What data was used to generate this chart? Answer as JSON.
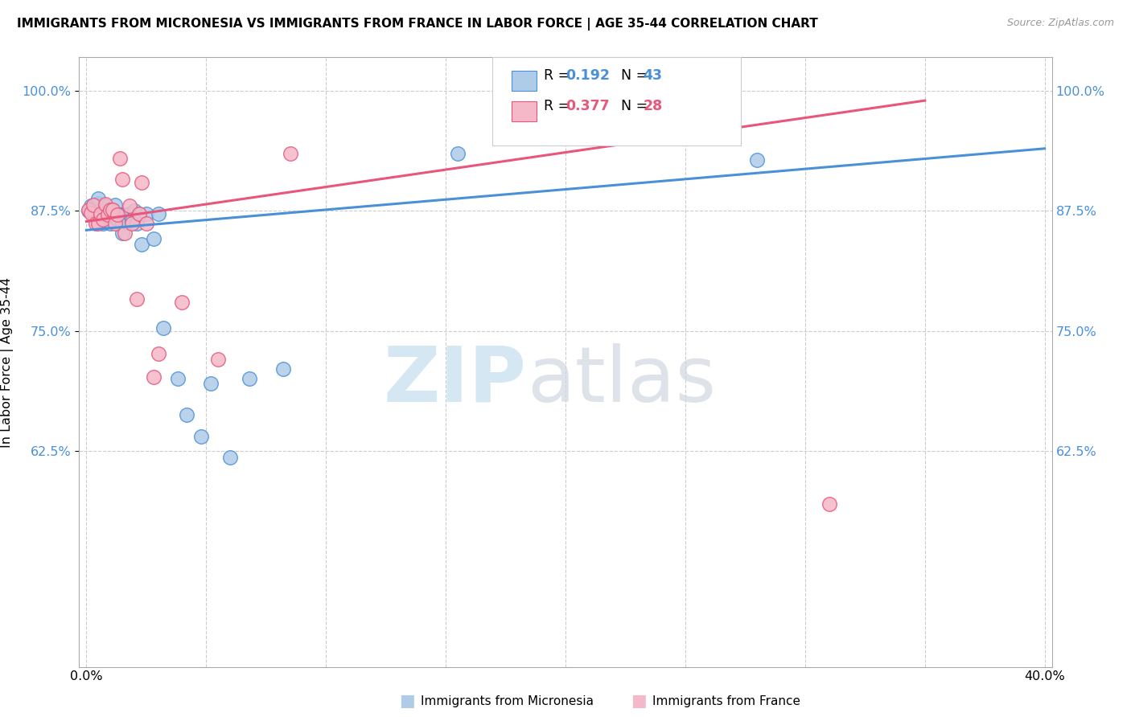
{
  "title": "IMMIGRANTS FROM MICRONESIA VS IMMIGRANTS FROM FRANCE IN LABOR FORCE | AGE 35-44 CORRELATION CHART",
  "source": "Source: ZipAtlas.com",
  "ylabel": "In Labor Force | Age 35-44",
  "xlim": [
    -0.003,
    0.403
  ],
  "ylim": [
    0.4,
    1.035
  ],
  "yticks": [
    1.0,
    0.875,
    0.75,
    0.625
  ],
  "ytick_labels": [
    "100.0%",
    "87.5%",
    "75.0%",
    "62.5%"
  ],
  "xticks": [
    0.0,
    0.05,
    0.1,
    0.15,
    0.2,
    0.25,
    0.3,
    0.35,
    0.4
  ],
  "xtick_labels": [
    "0.0%",
    "",
    "",
    "",
    "",
    "",
    "",
    "",
    "40.0%"
  ],
  "micronesia_R": "0.192",
  "micronesia_N": "43",
  "france_R": "0.377",
  "france_N": "28",
  "micronesia_color": "#aecce8",
  "france_color": "#f5b8c8",
  "micronesia_line_color": "#4a90d9",
  "france_line_color": "#e8567a",
  "micronesia_x": [
    0.001,
    0.002,
    0.003,
    0.004,
    0.005,
    0.005,
    0.006,
    0.007,
    0.007,
    0.008,
    0.009,
    0.01,
    0.01,
    0.011,
    0.011,
    0.012,
    0.012,
    0.013,
    0.013,
    0.014,
    0.015,
    0.015,
    0.016,
    0.017,
    0.018,
    0.019,
    0.02,
    0.021,
    0.022,
    0.023,
    0.025,
    0.028,
    0.03,
    0.032,
    0.038,
    0.042,
    0.048,
    0.052,
    0.06,
    0.068,
    0.082,
    0.155,
    0.28
  ],
  "micronesia_y": [
    0.875,
    0.88,
    0.876,
    0.882,
    0.883,
    0.888,
    0.872,
    0.877,
    0.862,
    0.88,
    0.866,
    0.876,
    0.862,
    0.872,
    0.876,
    0.881,
    0.871,
    0.866,
    0.871,
    0.871,
    0.863,
    0.852,
    0.871,
    0.863,
    0.872,
    0.865,
    0.875,
    0.862,
    0.872,
    0.84,
    0.872,
    0.846,
    0.872,
    0.753,
    0.7,
    0.663,
    0.64,
    0.695,
    0.618,
    0.7,
    0.71,
    0.935,
    0.928
  ],
  "france_x": [
    0.001,
    0.002,
    0.003,
    0.004,
    0.005,
    0.006,
    0.007,
    0.008,
    0.009,
    0.01,
    0.011,
    0.012,
    0.013,
    0.014,
    0.015,
    0.016,
    0.018,
    0.019,
    0.021,
    0.022,
    0.023,
    0.025,
    0.028,
    0.03,
    0.04,
    0.055,
    0.085,
    0.31
  ],
  "france_y": [
    0.876,
    0.873,
    0.881,
    0.862,
    0.862,
    0.872,
    0.866,
    0.882,
    0.871,
    0.876,
    0.876,
    0.862,
    0.871,
    0.93,
    0.908,
    0.852,
    0.88,
    0.862,
    0.783,
    0.872,
    0.905,
    0.862,
    0.702,
    0.726,
    0.78,
    0.72,
    0.935,
    0.57
  ],
  "micronesia_line_x": [
    0.0,
    0.4
  ],
  "micronesia_line_y": [
    0.855,
    0.94
  ],
  "france_line_x": [
    0.0,
    0.35
  ],
  "france_line_y": [
    0.864,
    0.99
  ]
}
